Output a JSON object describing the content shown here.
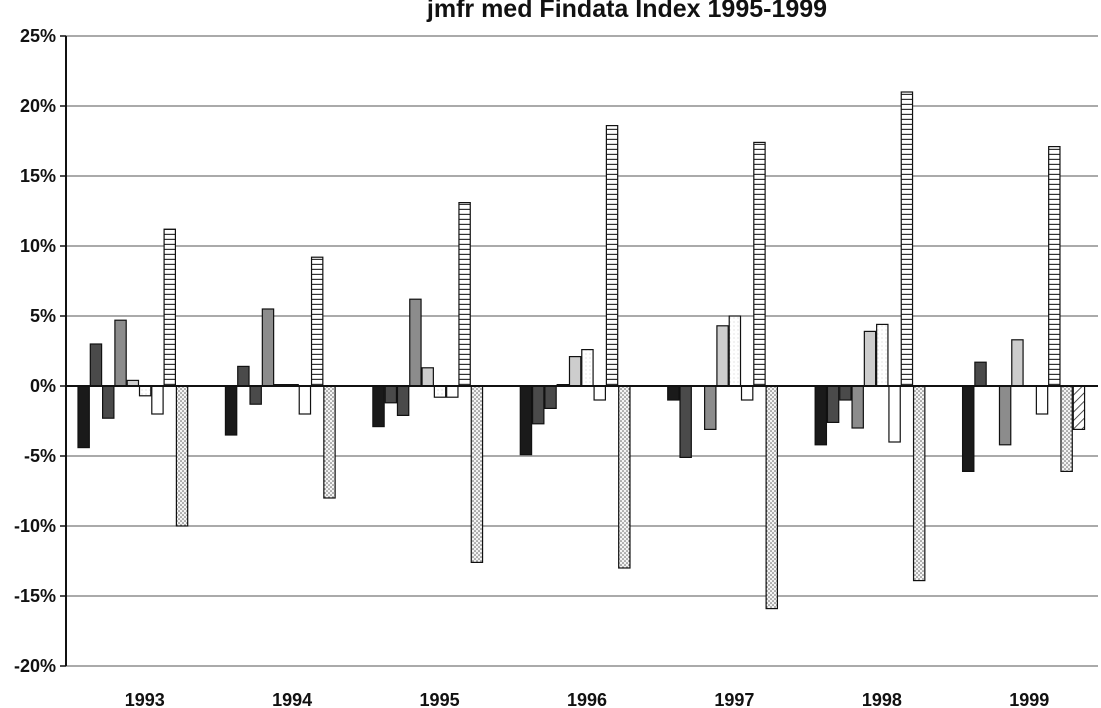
{
  "chart_data": {
    "type": "bar",
    "title": "jmfr med Findata Index 1995-1999",
    "xlabel": "",
    "ylabel": "",
    "ylim": [
      -20,
      25
    ],
    "yticks": [
      -20,
      -15,
      -10,
      -5,
      0,
      5,
      10,
      15,
      20,
      25
    ],
    "ytick_labels": [
      "-20%",
      "-15%",
      "-10%",
      "-5%",
      "0%",
      "5%",
      "10%",
      "15%",
      "20%",
      "25%"
    ],
    "categories": [
      "1993",
      "1994",
      "1995",
      "1996",
      "1997",
      "1998",
      "1999"
    ],
    "grid": true,
    "legend": "none",
    "series": [
      {
        "values": [
          -4.4,
          -3.5,
          -2.9,
          -4.9,
          -1.0,
          -4.2,
          -6.1
        ],
        "fill": "solid-black"
      },
      {
        "values": [
          3.0,
          1.4,
          -1.2,
          -2.7,
          -5.1,
          -2.6,
          1.7
        ],
        "fill": "dark-gray"
      },
      {
        "values": [
          -2.3,
          -1.3,
          -2.1,
          -1.6,
          null,
          -1.0,
          null
        ],
        "fill": "dark-gray"
      },
      {
        "values": [
          4.7,
          5.5,
          6.2,
          0.1,
          -3.1,
          -3.0,
          -4.2
        ],
        "fill": "mid-gray"
      },
      {
        "values": [
          0.4,
          0.1,
          1.3,
          2.1,
          4.3,
          3.9,
          3.3
        ],
        "fill": "light-gray"
      },
      {
        "values": [
          -0.7,
          0.1,
          -0.8,
          2.6,
          5.0,
          4.4,
          null
        ],
        "fill": "white-dotted"
      },
      {
        "values": [
          -2.0,
          -2.0,
          -0.8,
          -1.0,
          -1.0,
          -4.0,
          -2.0
        ],
        "fill": "white"
      },
      {
        "values": [
          11.2,
          9.2,
          13.1,
          18.6,
          17.4,
          21.0,
          17.1
        ],
        "fill": "horizontal-stripes"
      },
      {
        "values": [
          -10.0,
          -8.0,
          -12.6,
          -13.0,
          -15.9,
          -13.9,
          -6.1
        ],
        "fill": "dots"
      },
      {
        "values": [
          null,
          null,
          null,
          null,
          null,
          null,
          -3.1
        ],
        "fill": "diagonal-hatch"
      }
    ]
  }
}
